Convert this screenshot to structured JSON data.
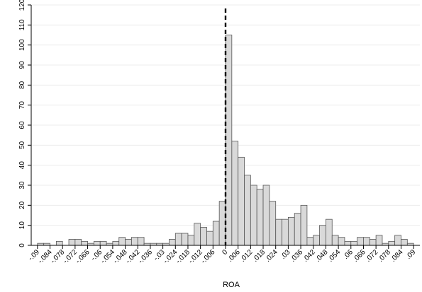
{
  "chart_data": {
    "type": "bar",
    "xlabel": "ROA",
    "ylabel": "",
    "ylim": [
      0,
      120
    ],
    "xlim": [
      -0.093,
      0.093
    ],
    "bin_width": 0.003,
    "grid": true,
    "bar_fill": "#d9d9d9",
    "bar_stroke": "#555555",
    "cutoff_line": {
      "x": 0,
      "style": "dashed",
      "color": "#000000"
    },
    "y_ticks": [
      0,
      10,
      20,
      30,
      40,
      50,
      60,
      70,
      80,
      90,
      100,
      110,
      120
    ],
    "x_ticks": [
      -0.09,
      -0.084,
      -0.078,
      -0.072,
      -0.066,
      -0.06,
      -0.054,
      -0.048,
      -0.042,
      -0.036,
      -0.03,
      -0.024,
      -0.018,
      -0.012,
      -0.006,
      0,
      0.006,
      0.012,
      0.018,
      0.024,
      0.03,
      0.036,
      0.042,
      0.048,
      0.054,
      0.06,
      0.066,
      0.072,
      0.078,
      0.084,
      0.09
    ],
    "x_tick_labels": [
      "-.09",
      "-.084",
      "-.078",
      "-.072",
      "-.066",
      "-.06",
      "-.054",
      "-.048",
      "-.042",
      "-.036",
      "-.03",
      "-.024",
      "-.018",
      "-.012",
      "-.006",
      "0",
      ".006",
      ".012",
      ".018",
      ".024",
      ".03",
      ".036",
      ".042",
      ".048",
      ".054",
      ".06",
      ".066",
      ".072",
      ".078",
      ".084",
      ".09"
    ],
    "bins_left": [
      -0.09,
      -0.087,
      -0.084,
      -0.081,
      -0.078,
      -0.075,
      -0.072,
      -0.069,
      -0.066,
      -0.063,
      -0.06,
      -0.057,
      -0.054,
      -0.051,
      -0.048,
      -0.045,
      -0.042,
      -0.039,
      -0.036,
      -0.033,
      -0.03,
      -0.027,
      -0.024,
      -0.021,
      -0.018,
      -0.015,
      -0.012,
      -0.009,
      -0.006,
      -0.003,
      0,
      0.003,
      0.006,
      0.009,
      0.012,
      0.015,
      0.018,
      0.021,
      0.024,
      0.027,
      0.03,
      0.033,
      0.036,
      0.039,
      0.042,
      0.045,
      0.048,
      0.051,
      0.054,
      0.057,
      0.06,
      0.063,
      0.066,
      0.069,
      0.072,
      0.075,
      0.078,
      0.081,
      0.084,
      0.087
    ],
    "values": [
      1,
      1,
      0,
      2,
      0,
      3,
      3,
      2,
      1,
      2,
      2,
      1,
      2,
      4,
      3,
      4,
      4,
      1,
      1,
      1,
      1,
      3,
      6,
      6,
      5,
      11,
      9,
      7,
      12,
      22,
      105,
      52,
      44,
      35,
      30,
      28,
      30,
      22,
      13,
      13,
      14,
      16,
      20,
      4,
      5,
      10,
      13,
      5,
      4,
      2,
      2,
      4,
      4,
      3,
      5,
      1,
      2,
      5,
      3,
      1
    ]
  }
}
